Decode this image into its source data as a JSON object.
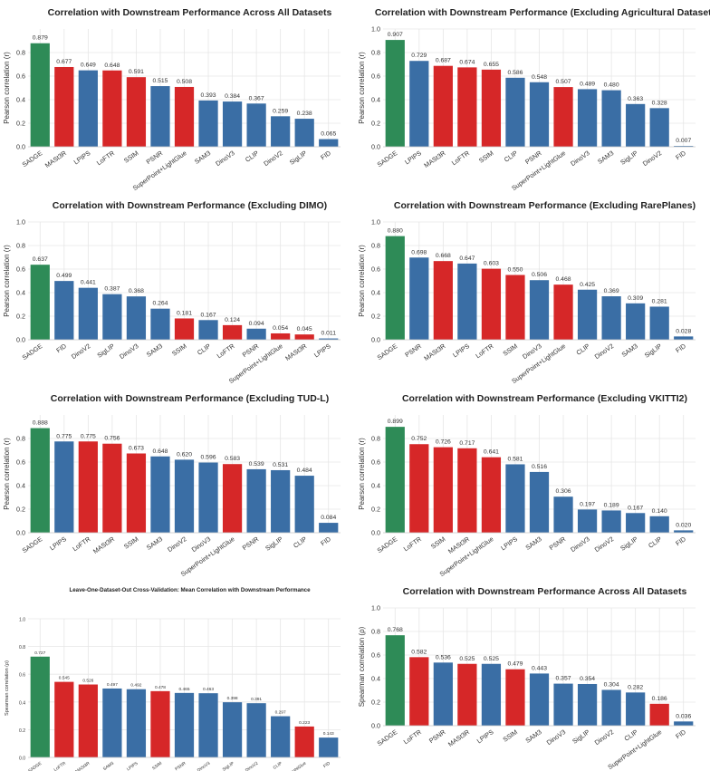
{
  "colors": {
    "green": "#2e8b57",
    "red": "#d62728",
    "blue": "#3a6ea5"
  },
  "chart_data": [
    {
      "type": "bar",
      "title": "Correlation with Downstream Performance Across All Datasets",
      "ylabel": "Pearson correlation (r)",
      "ylim": [
        0,
        1.0
      ],
      "yticks": [
        0.0,
        0.2,
        0.4,
        0.6,
        0.8
      ],
      "grid": true,
      "categories": [
        "SADGE",
        "MASt3R",
        "LPIPS",
        "LoFTR",
        "SSIM",
        "PSNR",
        "SuperPoint+LightGlue",
        "SAM3",
        "DinoV3",
        "CLIP",
        "DinoV2",
        "SigLIP",
        "FID"
      ],
      "values": [
        0.879,
        0.677,
        0.649,
        0.648,
        0.591,
        0.515,
        0.508,
        0.393,
        0.384,
        0.367,
        0.259,
        0.238,
        0.065
      ],
      "labels": [
        "0.879",
        "0.677",
        "0.649",
        "0.648",
        "0.591",
        "0.515",
        "0.508",
        "0.393",
        "0.384",
        "0.367",
        "0.259",
        "0.238",
        "0.065"
      ],
      "colors": [
        "green",
        "red",
        "blue",
        "red",
        "red",
        "blue",
        "red",
        "blue",
        "blue",
        "blue",
        "blue",
        "blue",
        "blue"
      ]
    },
    {
      "type": "bar",
      "title": "Correlation with Downstream Performance (Excluding Agricultural Dataset)",
      "ylabel": "Pearson correlation (r)",
      "ylim": [
        0,
        1.0
      ],
      "yticks": [
        0.0,
        0.2,
        0.4,
        0.6,
        0.8,
        1.0
      ],
      "grid": true,
      "categories": [
        "SADGE",
        "LPIPS",
        "MASt3R",
        "LoFTR",
        "SSIM",
        "CLIP",
        "PSNR",
        "SuperPoint+LightGlue",
        "DinoV3",
        "SAM3",
        "SigLIP",
        "DinoV2",
        "FID"
      ],
      "values": [
        0.907,
        0.729,
        0.687,
        0.674,
        0.655,
        0.586,
        0.548,
        0.507,
        0.489,
        0.48,
        0.363,
        0.328,
        0.007
      ],
      "labels": [
        "0.907",
        "0.729",
        "0.687",
        "0.674",
        "0.655",
        "0.586",
        "0.548",
        "0.507",
        "0.489",
        "0.480",
        "0.363",
        "0.328",
        "0.007"
      ],
      "colors": [
        "green",
        "blue",
        "red",
        "red",
        "red",
        "blue",
        "blue",
        "red",
        "blue",
        "blue",
        "blue",
        "blue",
        "blue"
      ]
    },
    {
      "type": "bar",
      "title": "Correlation with Downstream Performance (Excluding DIMO)",
      "ylabel": "Pearson correlation (r)",
      "ylim": [
        0,
        1.0
      ],
      "yticks": [
        0.0,
        0.2,
        0.4,
        0.6,
        0.8,
        1.0
      ],
      "grid": true,
      "categories": [
        "SADGE",
        "FID",
        "DinoV2",
        "SigLIP",
        "DinoV3",
        "SAM3",
        "SSIM",
        "CLIP",
        "LoFTR",
        "PSNR",
        "SuperPoint+LightGlue",
        "MASt3R",
        "LPIPS"
      ],
      "values": [
        0.637,
        0.499,
        0.441,
        0.387,
        0.368,
        0.264,
        0.181,
        0.167,
        0.124,
        0.094,
        0.054,
        0.045,
        0.011
      ],
      "labels": [
        "0.637",
        "0.499",
        "0.441",
        "0.387",
        "0.368",
        "0.264",
        "0.181",
        "0.167",
        "0.124",
        "0.094",
        "0.054",
        "0.045",
        "0.011"
      ],
      "colors": [
        "green",
        "blue",
        "blue",
        "blue",
        "blue",
        "blue",
        "red",
        "blue",
        "red",
        "blue",
        "red",
        "red",
        "blue"
      ]
    },
    {
      "type": "bar",
      "title": "Correlation with Downstream Performance (Excluding RarePlanes)",
      "ylabel": "Pearson correlation (r)",
      "ylim": [
        0,
        1.0
      ],
      "yticks": [
        0.0,
        0.2,
        0.4,
        0.6,
        0.8,
        1.0
      ],
      "grid": true,
      "categories": [
        "SADGE",
        "PSNR",
        "MASt3R",
        "LPIPS",
        "LoFTR",
        "SSIM",
        "DinoV3",
        "SuperPoint+LightGlue",
        "CLIP",
        "DinoV2",
        "SAM3",
        "SigLIP",
        "FID"
      ],
      "values": [
        0.88,
        0.698,
        0.668,
        0.647,
        0.603,
        0.55,
        0.506,
        0.468,
        0.425,
        0.369,
        0.309,
        0.281,
        0.028
      ],
      "labels": [
        "0.880",
        "0.698",
        "0.668",
        "0.647",
        "0.603",
        "0.550",
        "0.506",
        "0.468",
        "0.425",
        "0.369",
        "0.309",
        "0.281",
        "0.028"
      ],
      "colors": [
        "green",
        "blue",
        "red",
        "blue",
        "red",
        "red",
        "blue",
        "red",
        "blue",
        "blue",
        "blue",
        "blue",
        "blue"
      ]
    },
    {
      "type": "bar",
      "title": "Correlation with Downstream Performance (Excluding TUD-L)",
      "ylabel": "Pearson correlation (r)",
      "ylim": [
        0,
        1.0
      ],
      "yticks": [
        0.0,
        0.2,
        0.4,
        0.6,
        0.8
      ],
      "grid": true,
      "categories": [
        "SADGE",
        "LPIPS",
        "LoFTR",
        "MASt3R",
        "SSIM",
        "SAM3",
        "DinoV2",
        "DinoV3",
        "SuperPoint+LightGlue",
        "PSNR",
        "SigLIP",
        "CLIP",
        "FID"
      ],
      "values": [
        0.888,
        0.775,
        0.775,
        0.756,
        0.673,
        0.648,
        0.62,
        0.596,
        0.583,
        0.539,
        0.531,
        0.484,
        0.084
      ],
      "labels": [
        "0.888",
        "0.775",
        "0.775",
        "0.756",
        "0.673",
        "0.648",
        "0.620",
        "0.596",
        "0.583",
        "0.539",
        "0.531",
        "0.484",
        "0.084"
      ],
      "colors": [
        "green",
        "blue",
        "red",
        "red",
        "red",
        "blue",
        "blue",
        "blue",
        "red",
        "blue",
        "blue",
        "blue",
        "blue"
      ]
    },
    {
      "type": "bar",
      "title": "Correlation with Downstream Performance (Excluding VKITTI2)",
      "ylabel": "Pearson correlation (r)",
      "ylim": [
        0,
        1.0
      ],
      "yticks": [
        0.0,
        0.2,
        0.4,
        0.6,
        0.8
      ],
      "grid": true,
      "categories": [
        "SADGE",
        "LoFTR",
        "SSIM",
        "MASt3R",
        "SuperPoint+LightGlue",
        "LPIPS",
        "SAM3",
        "PSNR",
        "DinoV3",
        "DinoV2",
        "SigLIP",
        "CLIP",
        "FID"
      ],
      "values": [
        0.899,
        0.752,
        0.726,
        0.717,
        0.641,
        0.581,
        0.516,
        0.306,
        0.197,
        0.189,
        0.167,
        0.14,
        0.02
      ],
      "labels": [
        "0.899",
        "0.752",
        "0.726",
        "0.717",
        "0.641",
        "0.581",
        "0.516",
        "0.306",
        "0.197",
        "0.189",
        "0.167",
        "0.140",
        "0.020"
      ],
      "colors": [
        "green",
        "red",
        "red",
        "red",
        "red",
        "blue",
        "blue",
        "blue",
        "blue",
        "blue",
        "blue",
        "blue",
        "blue"
      ]
    },
    {
      "type": "bar",
      "title": "Leave-One-Dataset-Out Cross-Validation: Mean Correlation with Downstream Performance",
      "ylabel": "Spearman correlation (ρ)",
      "ylim": [
        0,
        1.0
      ],
      "yticks": [
        0.0,
        0.2,
        0.4,
        0.6,
        0.8,
        1.0
      ],
      "grid": true,
      "categories": [
        "SADGE",
        "LoFTR",
        "MASt3R",
        "SAM3",
        "LPIPS",
        "SSIM",
        "PSNR",
        "DinoV3",
        "SigLIP",
        "DinoV2",
        "CLIP",
        "SuperPoint+LightGlue",
        "FID"
      ],
      "values": [
        0.727,
        0.545,
        0.526,
        0.497,
        0.492,
        0.478,
        0.465,
        0.463,
        0.398,
        0.391,
        0.297,
        0.223,
        0.143
      ],
      "labels": [
        "0.727",
        "0.545",
        "0.526",
        "0.497",
        "0.492",
        "0.478",
        "0.465",
        "0.463",
        "0.398",
        "0.391",
        "0.297",
        "0.223",
        "0.143"
      ],
      "colors": [
        "green",
        "red",
        "red",
        "blue",
        "blue",
        "red",
        "blue",
        "blue",
        "blue",
        "blue",
        "blue",
        "red",
        "blue"
      ]
    },
    {
      "type": "bar",
      "title": "Correlation with Downstream Performance Across All Datasets",
      "ylabel": "Spearman correlation (ρ)",
      "ylim": [
        0,
        1.0
      ],
      "yticks": [
        0.0,
        0.2,
        0.4,
        0.6,
        0.8,
        1.0
      ],
      "grid": true,
      "categories": [
        "SADGE",
        "LoFTR",
        "PSNR",
        "MASt3R",
        "LPIPS",
        "SSIM",
        "SAM3",
        "DinoV3",
        "SigLIP",
        "DinoV2",
        "CLIP",
        "SuperPoint+LightGlue",
        "FID"
      ],
      "values": [
        0.768,
        0.582,
        0.536,
        0.525,
        0.525,
        0.479,
        0.443,
        0.357,
        0.354,
        0.304,
        0.282,
        0.186,
        0.036
      ],
      "labels": [
        "0.768",
        "0.582",
        "0.536",
        "0.525",
        "0.525",
        "0.479",
        "0.443",
        "0.357",
        "0.354",
        "0.304",
        "0.282",
        "0.186",
        "0.036"
      ],
      "colors": [
        "green",
        "red",
        "blue",
        "red",
        "blue",
        "red",
        "blue",
        "blue",
        "blue",
        "blue",
        "blue",
        "red",
        "blue"
      ]
    }
  ]
}
